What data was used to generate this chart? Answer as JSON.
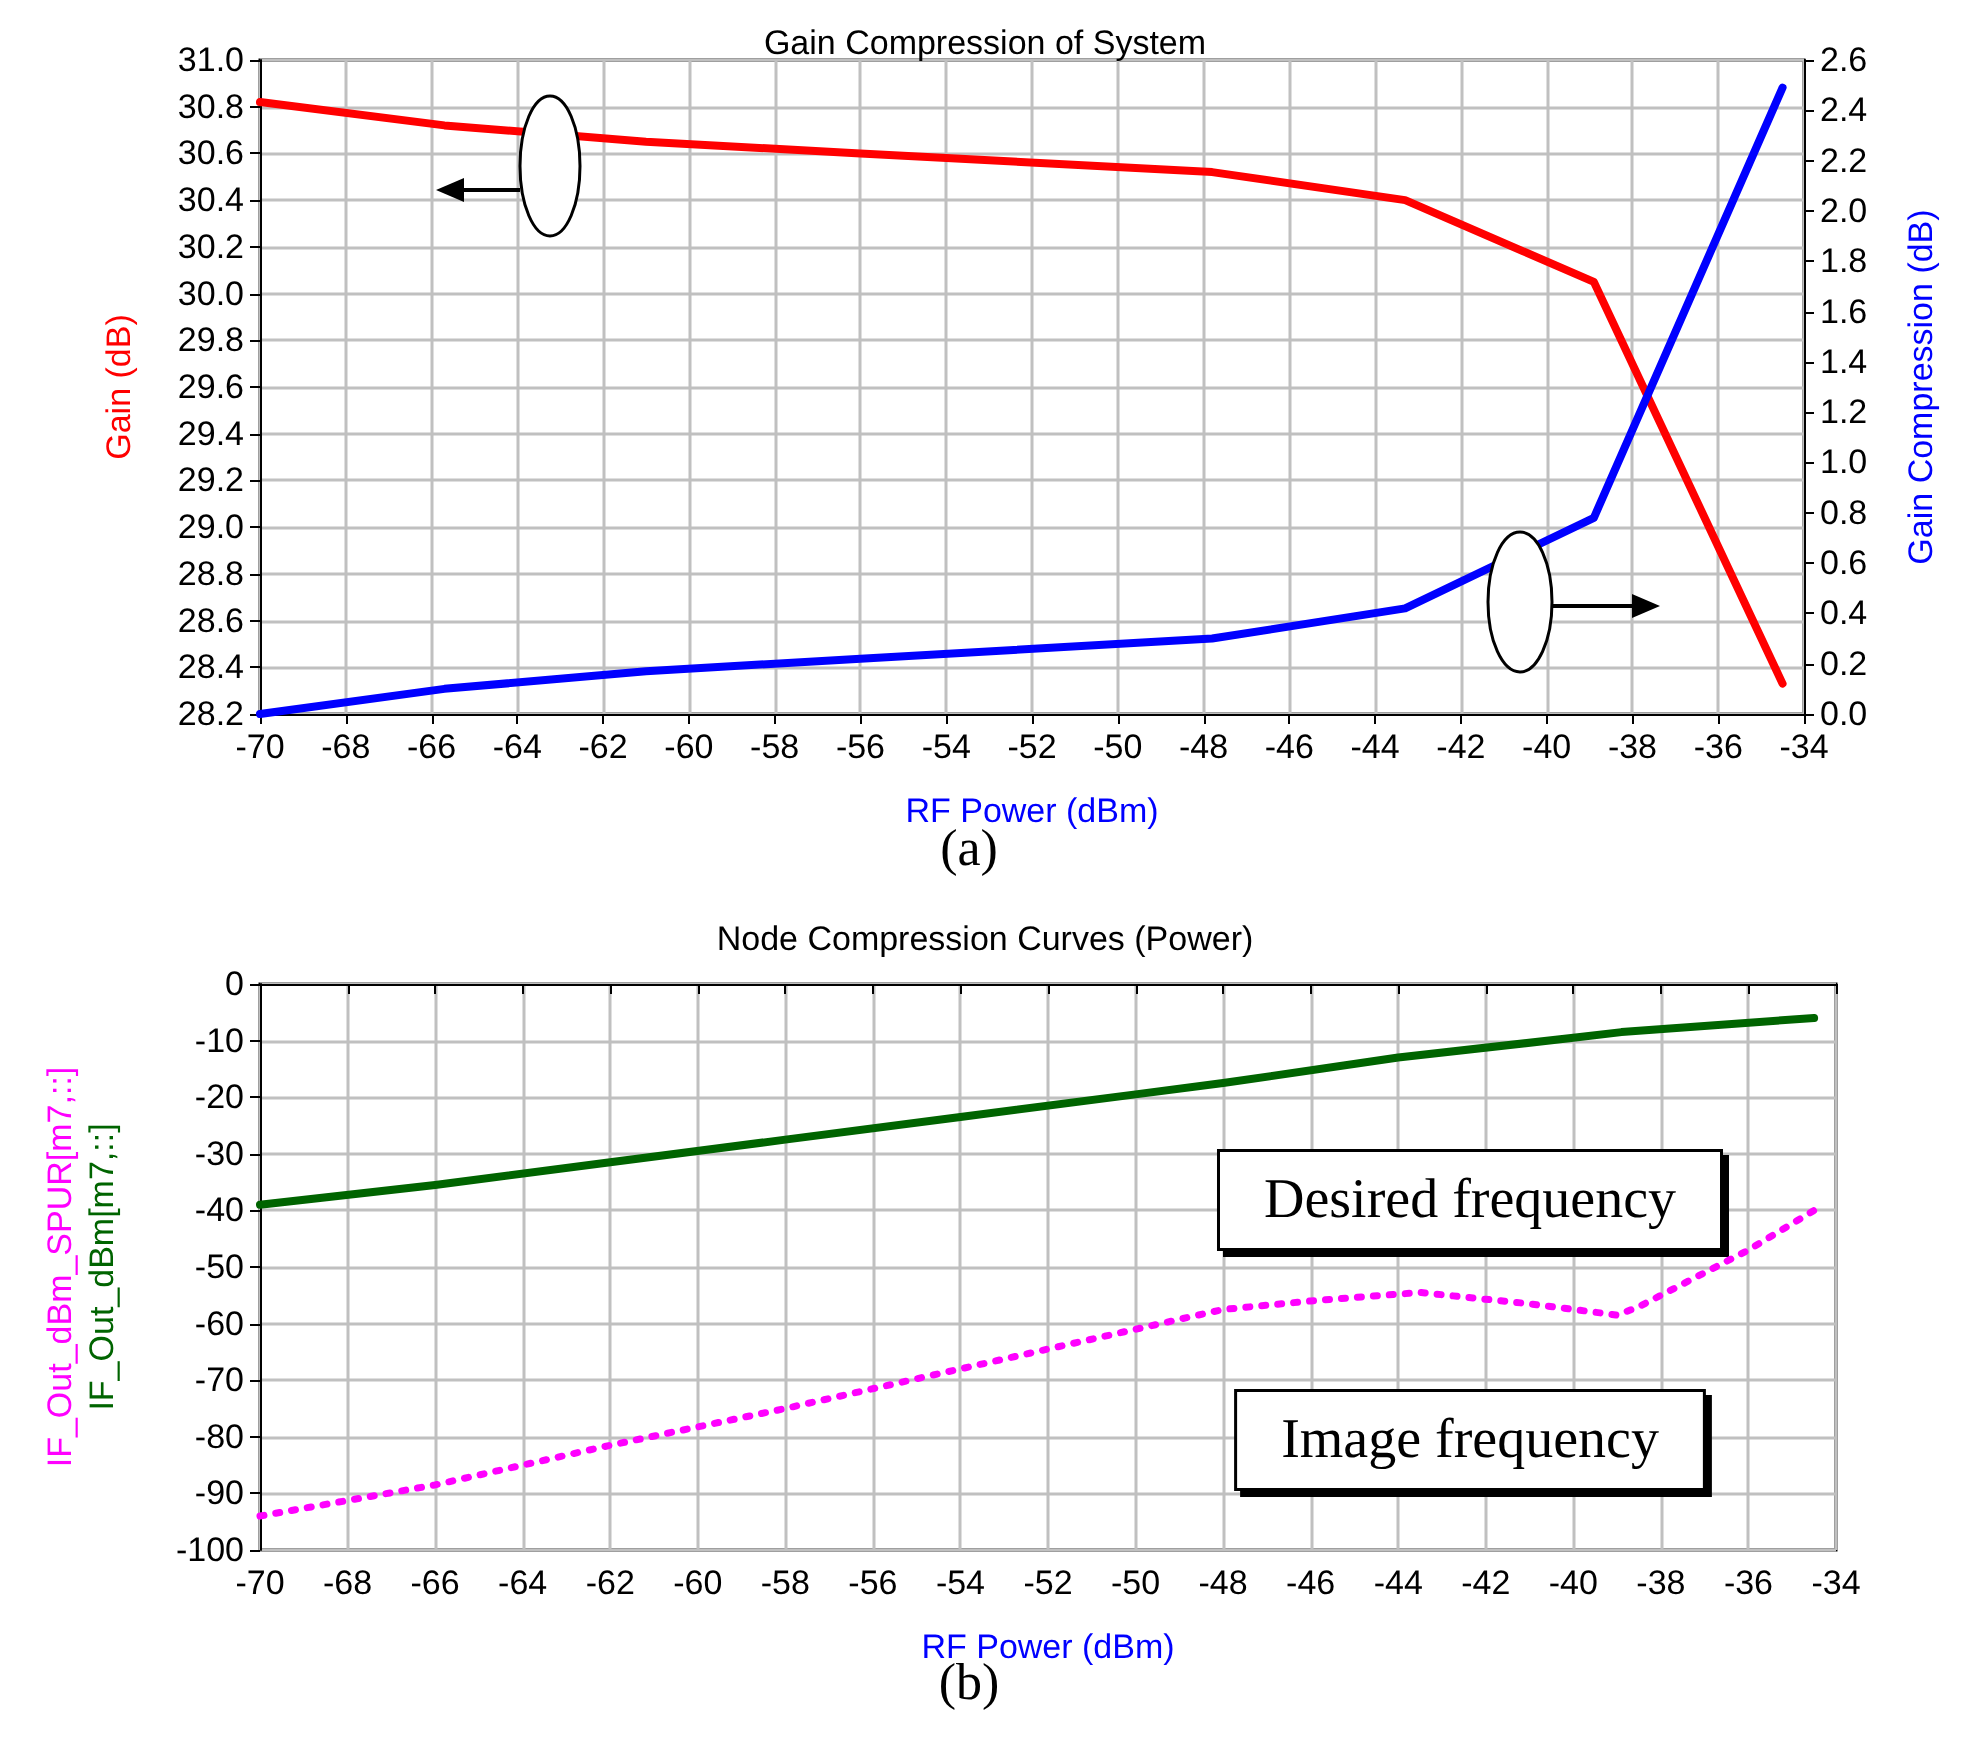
{
  "chart_data": [
    {
      "type": "line",
      "title": "Gain Compression of System",
      "xlabel": "RF Power (dBm)",
      "ylabel": "Gain (dB)",
      "y2label": "Gain Compression (dB)",
      "xlim": [
        -70,
        -34
      ],
      "xticks": [
        -70,
        -68,
        -66,
        -64,
        -62,
        -60,
        -58,
        -56,
        -54,
        -52,
        -50,
        -48,
        -46,
        -44,
        -42,
        -40,
        -38,
        -36,
        -34
      ],
      "ylim": [
        28.2,
        31
      ],
      "yticks": [
        28.2,
        28.4,
        28.6,
        28.8,
        {
          "value": 29,
          "label": "29.0"
        },
        29.2,
        29.4,
        29.6,
        29.8,
        {
          "value": 30,
          "label": "30.0"
        },
        30.2,
        30.4,
        30.6,
        30.8,
        {
          "value": 31,
          "label": "31.0"
        }
      ],
      "y2lim": [
        0,
        2.6
      ],
      "y2ticks": [
        {
          "value": 0,
          "label": "0.0"
        },
        0.2,
        0.4,
        0.6,
        0.8,
        {
          "value": 1,
          "label": "1.0"
        },
        1.2,
        1.4,
        1.6,
        1.8,
        {
          "value": 2,
          "label": "2.0"
        },
        2.2,
        2.4,
        2.6
      ],
      "grid": true,
      "marker": "none",
      "line_style": "solid",
      "series": [
        {
          "color": "#ff0000",
          "x": [
            -70,
            -65.7,
            -61,
            -56,
            -47.8,
            -43.3,
            -38.9,
            -34.5
          ],
          "values": [
            30.82,
            30.72,
            30.65,
            30.6,
            30.52,
            30.4,
            30.05,
            28.33
          ]
        },
        {
          "color": "#0000ff",
          "axis": "y2",
          "x": [
            -70,
            -65.7,
            -61,
            -56,
            -47.8,
            -43.3,
            -38.9,
            -34.5
          ],
          "values": [
            0,
            0.1,
            0.17,
            0.22,
            0.3,
            0.42,
            0.78,
            2.49
          ]
        }
      ],
      "annotations": [
        "(a)"
      ]
    },
    {
      "type": "line",
      "title": "Node Compression Curves (Power)",
      "xlabel": "RF Power (dBm)",
      "xlim": [
        -70,
        -34
      ],
      "xticks": [
        -70,
        -68,
        -66,
        -64,
        -62,
        -60,
        -58,
        -56,
        -54,
        -52,
        -50,
        -48,
        -46,
        -44,
        -42,
        -40,
        -38,
        -36,
        -34
      ],
      "ylim": [
        -100,
        0
      ],
      "yticks": [
        -100,
        -90,
        -80,
        -70,
        -60,
        -50,
        -40,
        -30,
        -20,
        -10,
        0
      ],
      "grid": true,
      "marker": "none",
      "legend": "left",
      "series": [
        {
          "name": "IF_Out_dBm_SPUR[m7,::]",
          "color": "#ff00ff",
          "line_style": "dotted",
          "x": [
            -70,
            -66,
            -62,
            -58,
            -54,
            -50,
            -48,
            -46,
            -43.5,
            -41,
            -39,
            -38.5,
            -36,
            -34.5
          ],
          "values": [
            -94,
            -88.5,
            -81.5,
            -75,
            -68,
            -61,
            -57.5,
            -56,
            -54.5,
            -56.5,
            -58.5,
            -57,
            -47,
            -40
          ]
        },
        {
          "name": "IF_Out_dBm[m7,::]",
          "color": "#006400",
          "line_style": "solid",
          "x": [
            -70,
            -66,
            -62,
            -58,
            -54,
            -50,
            -48,
            -44,
            -40,
            -38.9,
            -34.5
          ],
          "values": [
            -39,
            -35.5,
            -31.5,
            -27.5,
            -23.5,
            -19.5,
            -17.5,
            -13,
            -9.5,
            -8.5,
            -6
          ]
        }
      ],
      "annotations": [
        "Desired frequency",
        "Image frequency",
        "(b)"
      ]
    }
  ]
}
